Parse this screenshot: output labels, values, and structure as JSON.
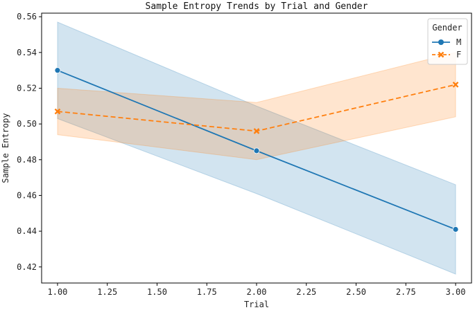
{
  "chart_data": {
    "type": "line",
    "title": "Sample Entropy Trends by Trial and Gender",
    "xlabel": "Trial",
    "ylabel": "Sample Entropy",
    "xlim": [
      0.92,
      3.08
    ],
    "ylim": [
      0.411,
      0.562
    ],
    "xticks": [
      "1.00",
      "1.25",
      "1.50",
      "1.75",
      "2.00",
      "2.25",
      "2.50",
      "2.75",
      "3.00"
    ],
    "yticks": [
      "0.42",
      "0.44",
      "0.46",
      "0.48",
      "0.50",
      "0.52",
      "0.54",
      "0.56"
    ],
    "grid": false,
    "legend": {
      "title": "Gender",
      "placement": "top-right"
    },
    "x": [
      1,
      2,
      3
    ],
    "series": [
      {
        "name": "M",
        "color": "#1f77b4",
        "marker": "circle",
        "linestyle": "solid",
        "values": [
          0.53,
          0.485,
          0.441
        ],
        "ci_lower": [
          0.503,
          0.461,
          0.416
        ],
        "ci_upper": [
          0.557,
          0.51,
          0.466
        ]
      },
      {
        "name": "F",
        "color": "#ff7f0e",
        "marker": "x",
        "linestyle": "dashed",
        "values": [
          0.507,
          0.496,
          0.522
        ],
        "ci_lower": [
          0.494,
          0.48,
          0.504
        ],
        "ci_upper": [
          0.52,
          0.512,
          0.54
        ]
      }
    ]
  }
}
